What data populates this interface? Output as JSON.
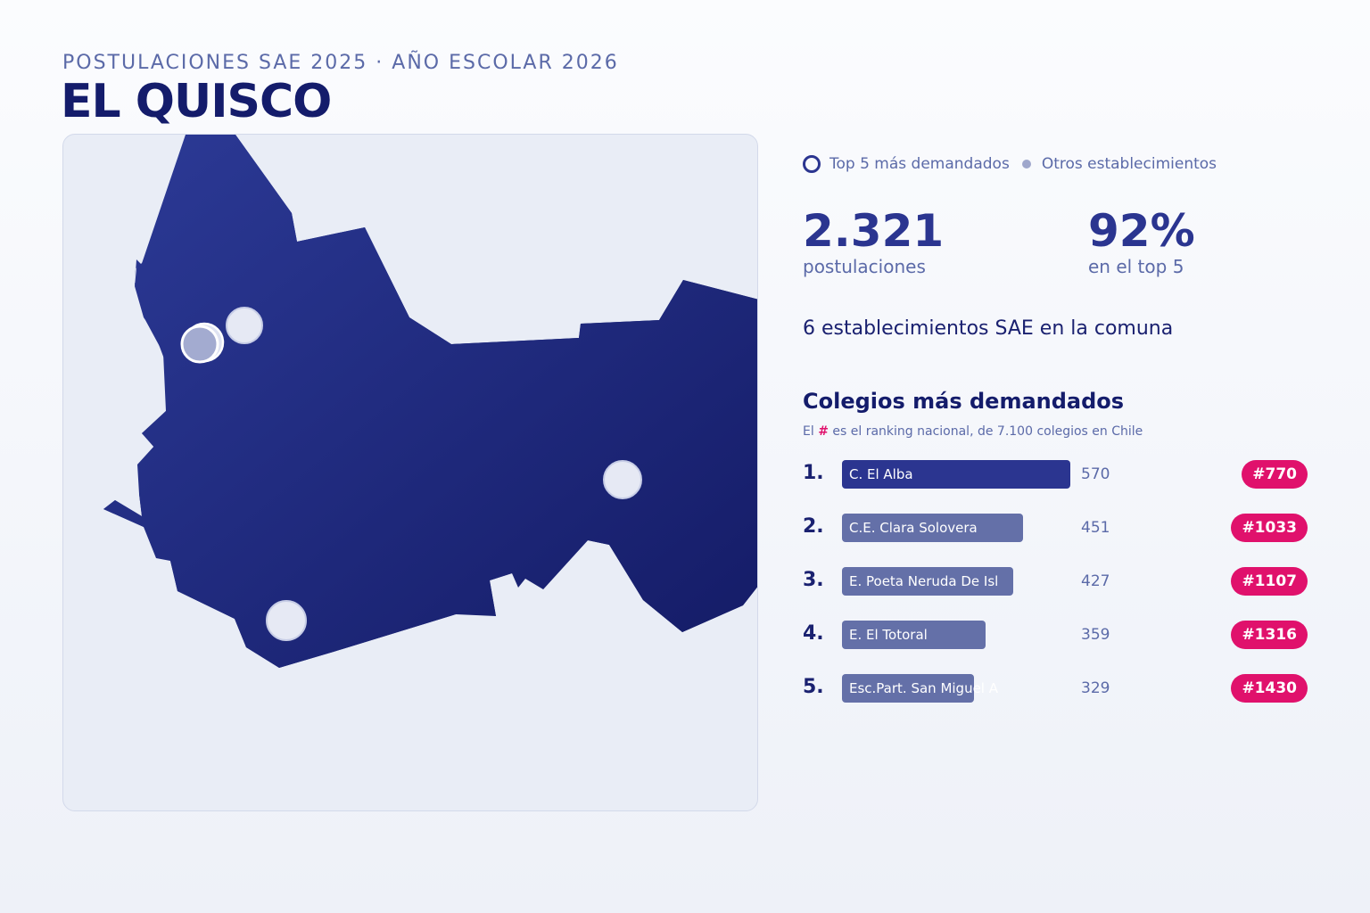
{
  "header": {
    "eyebrow": "POSTULACIONES SAE 2025 · AÑO ESCOLAR 2026",
    "title": "EL QUISCO"
  },
  "legend": {
    "top5": "Top 5 más demandados",
    "others": "Otros establecimientos"
  },
  "stats": {
    "applications_value": "2.321",
    "applications_label": "postulaciones",
    "top5_share_value": "92%",
    "top5_share_label": "en el top 5"
  },
  "schools_count_text": "6 establecimientos SAE en la comuna",
  "ranking": {
    "title": "Colegios más demandados",
    "subtitle_prefix": "El",
    "subtitle_hash": "#",
    "subtitle_suffix": "es el ranking nacional, de 7.100 colegios en Chile",
    "max_value": 570,
    "items": [
      {
        "pos": "1.",
        "name": "C. El Alba",
        "value": 570,
        "badge": "#770"
      },
      {
        "pos": "2.",
        "name": "C.E. Clara Solovera",
        "value": 451,
        "badge": "#1033"
      },
      {
        "pos": "3.",
        "name": "E. Poeta Neruda De Isl",
        "value": 427,
        "badge": "#1107"
      },
      {
        "pos": "4.",
        "name": "E. El Totoral",
        "value": 359,
        "badge": "#1316"
      },
      {
        "pos": "5.",
        "name": "Esc.Part. San Miguel A",
        "value": 329,
        "badge": "#1430"
      }
    ]
  },
  "colors": {
    "region_fill": "#25308a",
    "accent": "#2b3590",
    "badge": "#e0116c",
    "bar_other": "#6470a8"
  }
}
